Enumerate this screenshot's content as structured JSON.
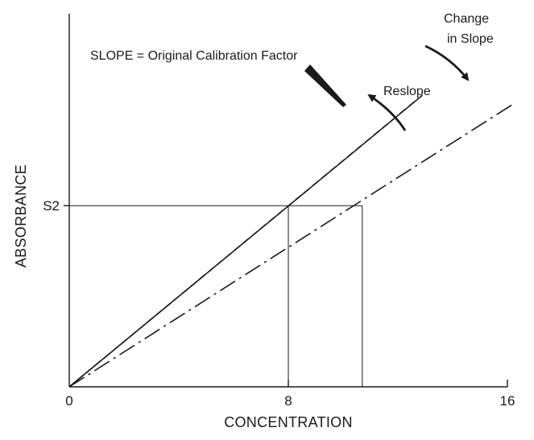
{
  "chart_data": {
    "type": "line",
    "xlabel": "CONCENTRATION",
    "ylabel": "ABSORBANCE",
    "xlim": [
      0,
      16
    ],
    "ylim": [
      0,
      10.3
    ],
    "x_ticks": [
      {
        "value": 0,
        "label": "0"
      },
      {
        "value": 8,
        "label": "8"
      },
      {
        "value": 16,
        "label": "16"
      }
    ],
    "y_ticks": [
      {
        "value": 5,
        "label": "S2"
      }
    ],
    "grid": false,
    "series": [
      {
        "style": "solid",
        "color": "#1a1a1a",
        "x": [
          0,
          12.9
        ],
        "y": [
          0,
          8.05
        ]
      },
      {
        "style": "dashed",
        "color": "#1a1a1a",
        "x": [
          0,
          12.65
        ],
        "y": [
          0,
          7.9
        ]
      },
      {
        "style": "dashdot",
        "color": "#1a1a1a",
        "x": [
          0,
          16.2
        ],
        "y": [
          0,
          7.8
        ]
      }
    ],
    "reference_lines": [
      {
        "orientation": "horizontal",
        "y": 5,
        "x_from": 0,
        "x_to": 10.7
      },
      {
        "orientation": "vertical",
        "x": 8,
        "y_from": 0,
        "y_to": 5
      },
      {
        "orientation": "vertical",
        "x": 10.7,
        "y_from": 0,
        "y_to": 5
      }
    ],
    "annotations": {
      "slope_label": "SLOPE = Original Calibration Factor",
      "reslope_label": "Reslope",
      "change_label_line1": "Change",
      "change_label_line2": "in Slope"
    }
  }
}
